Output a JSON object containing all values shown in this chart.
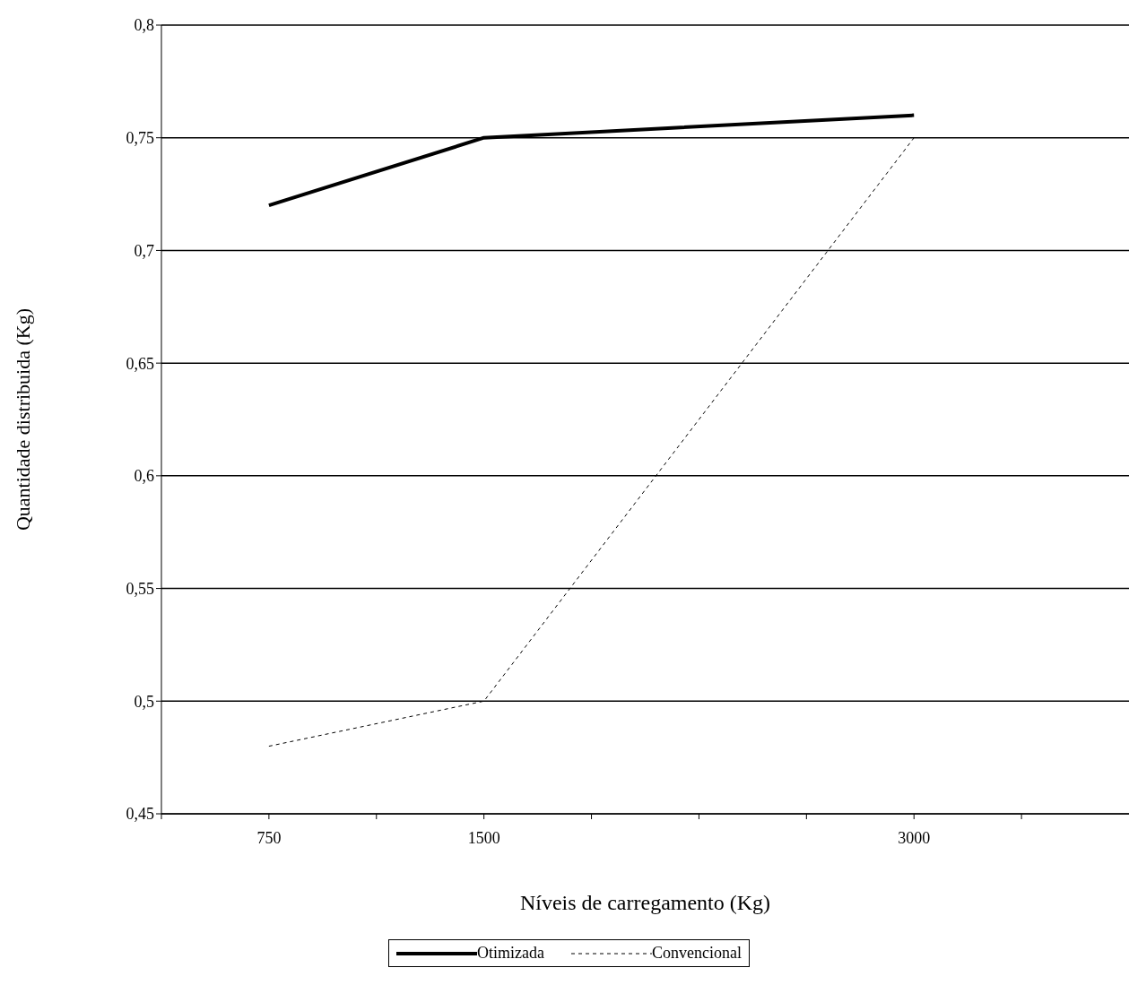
{
  "chart_data": {
    "type": "line",
    "xlabel": "Níveis de carregamento (Kg)",
    "ylabel": "Quantidade distribuida (Kg)",
    "x": [
      750,
      1500,
      3000
    ],
    "series": [
      {
        "name": "Otimizada",
        "color": "#000000",
        "values": [
          0.72,
          0.75,
          0.76
        ],
        "line_style": "solid"
      },
      {
        "name": "Convencional",
        "color": "#000000",
        "values": [
          0.48,
          0.5,
          0.75
        ],
        "line_style": "dashed"
      }
    ],
    "xlim": [
      375,
      3750
    ],
    "xticks": [
      {
        "value": 375,
        "label": null
      },
      750,
      {
        "value": 1125,
        "label": null
      },
      1500,
      {
        "value": 1875,
        "label": null
      },
      {
        "value": 2250,
        "label": null
      },
      {
        "value": 2625,
        "label": null
      },
      3000,
      {
        "value": 3375,
        "label": null
      }
    ],
    "ylim": [
      0.45,
      0.8
    ],
    "yticks": [
      {
        "value": 0.45,
        "label": "0,45"
      },
      {
        "value": 0.5,
        "label": "0,5"
      },
      {
        "value": 0.55,
        "label": "0,55"
      },
      {
        "value": 0.6,
        "label": "0,6"
      },
      {
        "value": 0.65,
        "label": "0,65"
      },
      {
        "value": 0.7,
        "label": "0,7"
      },
      {
        "value": 0.75,
        "label": "0,75"
      },
      {
        "value": 0.8,
        "label": "0,8"
      }
    ],
    "grid": "y",
    "legend": "bottom",
    "marker": "none"
  }
}
